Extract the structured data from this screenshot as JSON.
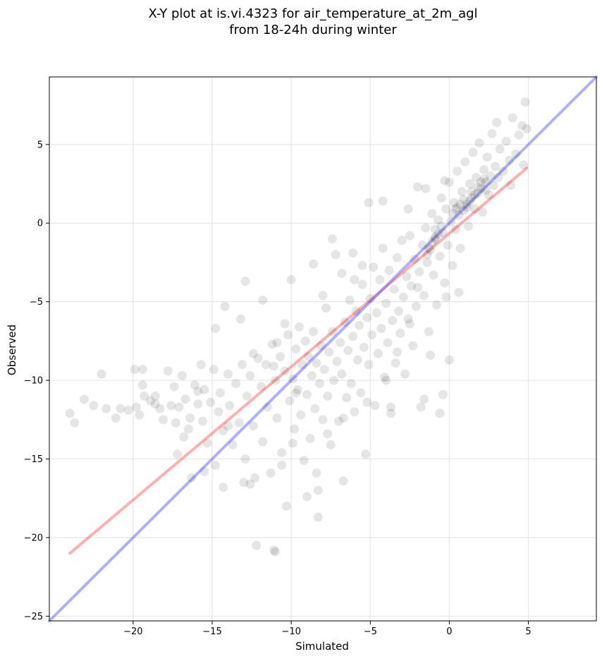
{
  "chart_data": {
    "type": "scatter",
    "title": "X-Y plot at is.vi.4323 for air_temperature_at_2m_agl",
    "subtitle": "from 18-24h during winter",
    "xlabel": "Simulated",
    "ylabel": "Observed",
    "xlim": [
      -25.3,
      9.3
    ],
    "ylim": [
      -25.3,
      9.3
    ],
    "xticks": [
      -20,
      -15,
      -10,
      -5,
      0,
      5
    ],
    "yticks": [
      -25,
      -20,
      -15,
      -10,
      -5,
      0,
      5
    ],
    "xtick_labels": [
      "−20",
      "−15",
      "−10",
      "−5",
      "0",
      "5"
    ],
    "ytick_labels": [
      "−25",
      "−20",
      "−15",
      "−10",
      "−5",
      "0",
      "5"
    ],
    "grid": true,
    "point_color": "#000000",
    "series": [
      {
        "type": "scatter",
        "points": [
          [
            -24,
            -12.1
          ],
          [
            -23.7,
            -12.7
          ],
          [
            -23.1,
            -11.2
          ],
          [
            -22.5,
            -11.6
          ],
          [
            -22.0,
            -9.6
          ],
          [
            -21.7,
            -11.8
          ],
          [
            -21.1,
            -12.4
          ],
          [
            -20.8,
            -11.8
          ],
          [
            -20.3,
            -11.9
          ],
          [
            -19.9,
            -9.3
          ],
          [
            -19.8,
            -11.7
          ],
          [
            -19.6,
            -12.2
          ],
          [
            -19.4,
            -9.3
          ],
          [
            -19.4,
            -10.3
          ],
          [
            -19.3,
            -11.0
          ],
          [
            -18.9,
            -11.3
          ],
          [
            -18.6,
            -11.5
          ],
          [
            -18.3,
            -11.8
          ],
          [
            -18.1,
            -12.5
          ],
          [
            -17.8,
            -9.4
          ],
          [
            -17.6,
            -11.6
          ],
          [
            -17.3,
            -12.7
          ],
          [
            -17.1,
            -11.7
          ],
          [
            -16.9,
            -9.7
          ],
          [
            -16.8,
            -13.6
          ],
          [
            -16.7,
            -11.2
          ],
          [
            -16.4,
            -12.4
          ],
          [
            -16.1,
            -10.3
          ],
          [
            -15.9,
            -11.5
          ],
          [
            -15.7,
            -9.0
          ],
          [
            -15.6,
            -12.6
          ],
          [
            -15.5,
            -10.6
          ],
          [
            -15.3,
            -14.0
          ],
          [
            -15.1,
            -11.4
          ],
          [
            -14.9,
            -9.3
          ],
          [
            -14.8,
            -15.4
          ],
          [
            -14.6,
            -12.0
          ],
          [
            -14.5,
            -10.8
          ],
          [
            -14.3,
            -13.2
          ],
          [
            -14.0,
            -9.6
          ],
          [
            -13.9,
            -11.6
          ],
          [
            -13.7,
            -14.1
          ],
          [
            -13.5,
            -10.2
          ],
          [
            -13.3,
            -12.7
          ],
          [
            -13.1,
            -9.0
          ],
          [
            -12.9,
            -15.0
          ],
          [
            -12.8,
            -11.0
          ],
          [
            -12.6,
            -9.7
          ],
          [
            -12.4,
            -12.9
          ],
          [
            -12.3,
            -16.2
          ],
          [
            -12.1,
            -8.6
          ],
          [
            -11.9,
            -10.4
          ],
          [
            -11.8,
            -13.9
          ],
          [
            -11.6,
            -9.0
          ],
          [
            -11.5,
            -11.7
          ],
          [
            -11.3,
            -15.9
          ],
          [
            -11.2,
            -7.7
          ],
          [
            -11.1,
            -20.8
          ],
          [
            -11.0,
            -10.0
          ],
          [
            -10.9,
            -12.4
          ],
          [
            -10.7,
            -8.5
          ],
          [
            -10.6,
            -14.6
          ],
          [
            -10.4,
            -9.4
          ],
          [
            -10.3,
            -18.0
          ],
          [
            -10.2,
            -7.1
          ],
          [
            -10.1,
            -11.3
          ],
          [
            -10.0,
            -3.6
          ],
          [
            -9.9,
            -9.9
          ],
          [
            -9.8,
            -13.1
          ],
          [
            -9.7,
            -8.0
          ],
          [
            -9.6,
            -10.6
          ],
          [
            -9.5,
            -6.6
          ],
          [
            -9.4,
            -12.2
          ],
          [
            -9.3,
            -9.0
          ],
          [
            -9.2,
            -15.1
          ],
          [
            -9.1,
            -7.5
          ],
          [
            -9.0,
            -10.9
          ],
          [
            -8.9,
            -8.5
          ],
          [
            -8.8,
            -13.7
          ],
          [
            -8.7,
            -9.7
          ],
          [
            -8.6,
            -6.9
          ],
          [
            -8.5,
            -11.8
          ],
          [
            -8.4,
            -8.9
          ],
          [
            -8.3,
            -17.0
          ],
          [
            -8.2,
            -10.2
          ],
          [
            -8.1,
            -7.8
          ],
          [
            -8.0,
            -12.5
          ],
          [
            -7.9,
            -9.3
          ],
          [
            -7.8,
            -5.4
          ],
          [
            -7.7,
            -11.0
          ],
          [
            -7.6,
            -8.2
          ],
          [
            -7.5,
            -14.1
          ],
          [
            -7.4,
            -6.9
          ],
          [
            -7.3,
            -10.0
          ],
          [
            -7.2,
            -2.0
          ],
          [
            -7.1,
            -8.8
          ],
          [
            -7.0,
            -12.6
          ],
          [
            -6.9,
            -7.6
          ],
          [
            -6.8,
            -9.6
          ],
          [
            -6.7,
            -16.4
          ],
          [
            -6.6,
            -6.3
          ],
          [
            -6.5,
            -11.1
          ],
          [
            -6.4,
            -8.1
          ],
          [
            -6.3,
            -4.9
          ],
          [
            -6.2,
            -10.2
          ],
          [
            -6.1,
            -7.2
          ],
          [
            -6.0,
            -12.0
          ],
          [
            -5.9,
            -5.6
          ],
          [
            -5.8,
            -8.7
          ],
          [
            -5.7,
            -6.5
          ],
          [
            -5.6,
            -10.8
          ],
          [
            -5.5,
            -3.9
          ],
          [
            -5.4,
            -7.9
          ],
          [
            -5.3,
            -14.7
          ],
          [
            -5.2,
            -6.0
          ],
          [
            -5.1,
            -9.0
          ],
          [
            -5.0,
            -4.8
          ],
          [
            -4.9,
            -7.1
          ],
          [
            -4.8,
            -2.8
          ],
          [
            -4.7,
            -11.6
          ],
          [
            -4.6,
            -5.7
          ],
          [
            -4.5,
            -8.3
          ],
          [
            -4.4,
            -3.6
          ],
          [
            -4.3,
            -6.7
          ],
          [
            -4.2,
            -1.6
          ],
          [
            -4.1,
            -9.8
          ],
          [
            -4.0,
            -5.1
          ],
          [
            -3.9,
            -7.6
          ],
          [
            -3.8,
            -3.0
          ],
          [
            -3.7,
            -11.7
          ],
          [
            -3.6,
            -6.2
          ],
          [
            -3.5,
            -4.2
          ],
          [
            -3.4,
            -8.9
          ],
          [
            -3.3,
            -2.2
          ],
          [
            -3.2,
            -5.6
          ],
          [
            -3.1,
            -7.0
          ],
          [
            -3.0,
            -1.1
          ],
          [
            -2.9,
            -4.7
          ],
          [
            -2.8,
            -9.6
          ],
          [
            -2.7,
            -3.4
          ],
          [
            -2.6,
            -6.1
          ],
          [
            -2.5,
            -0.8
          ],
          [
            -2.4,
            -4.0
          ],
          [
            -2.3,
            -7.8
          ],
          [
            -2.2,
            -2.3
          ],
          [
            -2.1,
            -5.3
          ],
          [
            -2.0,
            2.3
          ],
          [
            -1.9,
            -3.1
          ],
          [
            -1.8,
            -11.7
          ],
          [
            -1.7,
            -1.4
          ],
          [
            -1.6,
            -4.6
          ],
          [
            -1.5,
            -0.3
          ],
          [
            -1.4,
            -2.5
          ],
          [
            -1.3,
            -6.9
          ],
          [
            -1.2,
            -1.7
          ],
          [
            -1.1,
            0.6
          ],
          [
            -1.0,
            -3.3
          ],
          [
            -0.9,
            -1.0
          ],
          [
            -0.8,
            -5.2
          ],
          [
            -0.7,
            0.2
          ],
          [
            -0.6,
            -2.1
          ],
          [
            -0.5,
            1.6
          ],
          [
            -0.4,
            -0.6
          ],
          [
            -0.3,
            -3.8
          ],
          [
            -0.2,
            0.9
          ],
          [
            -0.1,
            -1.4
          ],
          [
            0.0,
            2.6
          ],
          [
            0.1,
            0.1
          ],
          [
            0.2,
            -2.7
          ],
          [
            0.3,
            1.3
          ],
          [
            0.4,
            -0.4
          ],
          [
            0.5,
            3.3
          ],
          [
            0.6,
            0.5
          ],
          [
            0.7,
            -1.6
          ],
          [
            0.8,
            2.0
          ],
          [
            0.9,
            0.8
          ],
          [
            1.0,
            3.9
          ],
          [
            1.1,
            1.2
          ],
          [
            1.2,
            -0.2
          ],
          [
            1.3,
            2.5
          ],
          [
            1.4,
            1.6
          ],
          [
            1.5,
            4.5
          ],
          [
            1.6,
            0.9
          ],
          [
            1.7,
            2.9
          ],
          [
            1.8,
            1.9
          ],
          [
            1.9,
            5.1
          ],
          [
            2.0,
            2.2
          ],
          [
            2.1,
            0.7
          ],
          [
            2.2,
            3.4
          ],
          [
            2.3,
            2.6
          ],
          [
            2.4,
            4.2
          ],
          [
            2.5,
            1.8
          ],
          [
            2.6,
            3.0
          ],
          [
            2.7,
            5.7
          ],
          [
            2.8,
            2.4
          ],
          [
            2.9,
            3.6
          ],
          [
            3.0,
            6.4
          ],
          [
            3.1,
            2.9
          ],
          [
            3.2,
            4.7
          ],
          [
            3.4,
            3.3
          ],
          [
            3.6,
            5.2
          ],
          [
            3.8,
            4.0
          ],
          [
            4.0,
            6.7
          ],
          [
            4.2,
            4.4
          ],
          [
            4.4,
            5.6
          ],
          [
            4.6,
            6.2
          ],
          [
            4.8,
            7.7
          ],
          [
            4.9,
            6.0
          ],
          [
            4.7,
            3.7
          ],
          [
            3.9,
            2.4
          ],
          [
            -12.2,
            -20.5
          ],
          [
            -11.0,
            -20.9
          ],
          [
            -8.3,
            -18.7
          ],
          [
            -9.0,
            -17.4
          ],
          [
            -12.6,
            -16.6
          ],
          [
            -13.0,
            -16.5
          ],
          [
            -14.3,
            -16.8
          ],
          [
            -16.3,
            -16.2
          ],
          [
            -17.2,
            -14.7
          ],
          [
            -15.5,
            -15.8
          ],
          [
            -3.7,
            -12.1
          ],
          [
            -1.6,
            -11.2
          ],
          [
            -0.6,
            -12.1
          ],
          [
            -0.4,
            -10.9
          ],
          [
            -1.2,
            -8.4
          ],
          [
            0.0,
            -8.7
          ],
          [
            -0.2,
            -4.7
          ],
          [
            0.6,
            -4.4
          ],
          [
            -6.0,
            -3.6
          ],
          [
            -4.2,
            1.4
          ],
          [
            -5.1,
            1.3
          ],
          [
            -2.6,
            0.9
          ],
          [
            -1.5,
            2.2
          ],
          [
            -0.3,
            2.7
          ],
          [
            -8.6,
            -2.6
          ],
          [
            -8.0,
            -4.6
          ],
          [
            -7.4,
            -1.0
          ],
          [
            -6.8,
            -3.2
          ],
          [
            -6.1,
            -1.9
          ],
          [
            -5.5,
            -2.7
          ],
          [
            -10.4,
            -6.4
          ],
          [
            -10.9,
            -7.6
          ],
          [
            -11.8,
            -4.9
          ],
          [
            -13.2,
            -6.1
          ],
          [
            -12.9,
            -3.7
          ],
          [
            -14.8,
            -6.7
          ],
          [
            -14.2,
            -5.3
          ],
          [
            -12.4,
            -8.3
          ],
          [
            -11.1,
            -9.1
          ],
          [
            -9.7,
            -10.8
          ],
          [
            -15.9,
            -10.7
          ],
          [
            -17.4,
            -10.4
          ],
          [
            -18.6,
            -11.0
          ],
          [
            -16.5,
            -13.1
          ],
          [
            -14.0,
            -12.9
          ],
          [
            -9.9,
            -14.0
          ],
          [
            -10.6,
            -15.4
          ],
          [
            -8.4,
            -15.9
          ],
          [
            -7.7,
            -13.4
          ],
          [
            -6.7,
            -12.4
          ],
          [
            -5.2,
            -11.4
          ],
          [
            -4.0,
            -10.0
          ],
          [
            -3.3,
            -8.2
          ],
          [
            -2.5,
            -6.4
          ],
          [
            -2.0,
            -4.1
          ],
          [
            -1.4,
            -2.0
          ],
          [
            -0.9,
            -0.4
          ],
          [
            0.5,
            1.0
          ],
          [
            1.4,
            2.0
          ],
          [
            2.2,
            2.8
          ],
          [
            -1.3,
            -1.6
          ],
          [
            -1.1,
            -1.2
          ],
          [
            -0.9,
            -0.9
          ],
          [
            -0.7,
            -0.7
          ],
          [
            -0.5,
            -0.2
          ],
          [
            0.2,
            0.6
          ],
          [
            0.4,
            0.9
          ],
          [
            0.7,
            1.2
          ],
          [
            0.9,
            1.5
          ],
          [
            1.1,
            1.0
          ],
          [
            1.3,
            1.4
          ],
          [
            1.6,
            1.8
          ],
          [
            1.8,
            2.3
          ],
          [
            2.0,
            2.6
          ],
          [
            2.3,
            2.1
          ]
        ]
      },
      {
        "type": "line",
        "color": "#ff4d4d",
        "points": [
          [
            -24.0,
            -21.0
          ],
          [
            4.9,
            3.5
          ]
        ]
      },
      {
        "type": "line",
        "color": "#4d4dff",
        "points": [
          [
            -25.3,
            -25.3
          ],
          [
            9.3,
            9.3
          ]
        ]
      }
    ]
  }
}
